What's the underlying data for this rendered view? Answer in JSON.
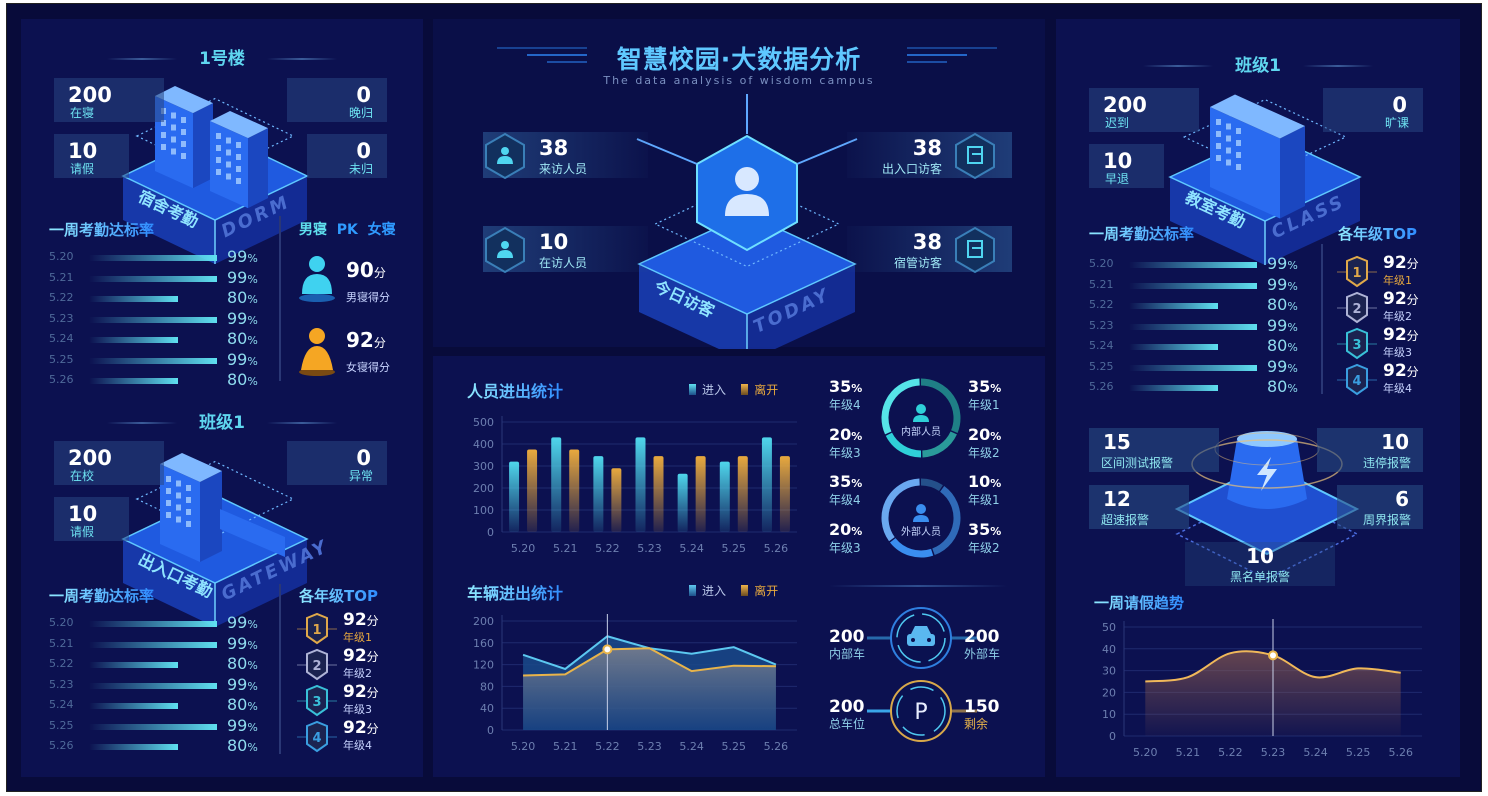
{
  "header": {
    "title": "智慧校园·大数据分析",
    "subtitle": "The data analysis of wisdom campus"
  },
  "dorm": {
    "title": "1号楼",
    "stats": [
      {
        "value": "200",
        "label": "在寝"
      },
      {
        "value": "0",
        "label": "晚归"
      },
      {
        "value": "10",
        "label": "请假"
      },
      {
        "value": "0",
        "label": "未归"
      }
    ],
    "badge_cn": "宿舍考勤",
    "badge_en": "DORM",
    "rate_title": "一周考勤达标率",
    "rates": [
      {
        "date": "5.20",
        "value": 99
      },
      {
        "date": "5.21",
        "value": 99
      },
      {
        "date": "5.22",
        "value": 80
      },
      {
        "date": "5.23",
        "value": 99
      },
      {
        "date": "5.24",
        "value": 80
      },
      {
        "date": "5.25",
        "value": 99
      },
      {
        "date": "5.26",
        "value": 80
      }
    ],
    "pk": {
      "left": "男寝",
      "mid": "PK",
      "right": "女寝",
      "male": {
        "score": "90",
        "unit": "分",
        "label": "男寝得分",
        "color": "#3fd2f0"
      },
      "female": {
        "score": "92",
        "unit": "分",
        "label": "女寝得分",
        "color": "#f5a623"
      }
    }
  },
  "gateway": {
    "title": "班级1",
    "stats": [
      {
        "value": "200",
        "label": "在校"
      },
      {
        "value": "0",
        "label": "异常"
      },
      {
        "value": "10",
        "label": "请假"
      }
    ],
    "badge_cn": "出入口考勤",
    "badge_en": "GATEWAY",
    "rate_title": "一周考勤达标率",
    "rates": [
      {
        "date": "5.20",
        "value": 99
      },
      {
        "date": "5.21",
        "value": 99
      },
      {
        "date": "5.22",
        "value": 80
      },
      {
        "date": "5.23",
        "value": 99
      },
      {
        "date": "5.24",
        "value": 80
      },
      {
        "date": "5.25",
        "value": 99
      },
      {
        "date": "5.26",
        "value": 80
      }
    ],
    "top_title": "各年级TOP",
    "top": [
      {
        "rank": "1",
        "score": "92",
        "unit": "分",
        "grade": "年级1",
        "color": "#e0a94a"
      },
      {
        "rank": "2",
        "score": "92",
        "unit": "分",
        "grade": "年级2",
        "color": "#aeb3d6"
      },
      {
        "rank": "3",
        "score": "92",
        "unit": "分",
        "grade": "年级3",
        "color": "#39c0d8"
      },
      {
        "rank": "4",
        "score": "92",
        "unit": "分",
        "grade": "年级4",
        "color": "#3a9ee0"
      }
    ]
  },
  "visitors": {
    "badge_cn": "今日访客",
    "badge_en": "TODAY",
    "items": [
      {
        "value": "38",
        "label": "来访人员",
        "icon": "visitor-icon"
      },
      {
        "value": "10",
        "label": "在访人员",
        "icon": "present-visitor-icon"
      },
      {
        "value": "38",
        "label": "出入口访客",
        "icon": "gate-icon"
      },
      {
        "value": "38",
        "label": "宿管访客",
        "icon": "dorm-manager-icon"
      }
    ]
  },
  "people": {
    "internal": {
      "label": "内部人员",
      "color": "#2fd0d8",
      "slices": [
        {
          "pct": "35",
          "grade": "年级1"
        },
        {
          "pct": "20",
          "grade": "年级2"
        },
        {
          "pct": "20",
          "grade": "年级3"
        },
        {
          "pct": "35",
          "grade": "年级4"
        }
      ]
    },
    "external": {
      "label": "外部人员",
      "color": "#3a8ef0",
      "slices": [
        {
          "pct": "10",
          "grade": "年级1"
        },
        {
          "pct": "35",
          "grade": "年级2"
        },
        {
          "pct": "20",
          "grade": "年级3"
        },
        {
          "pct": "35",
          "grade": "年级4"
        }
      ]
    },
    "pct_sign": "%"
  },
  "vehicles": {
    "internal": {
      "value": "200",
      "label": "内部车"
    },
    "external": {
      "value": "200",
      "label": "外部车"
    },
    "total": {
      "value": "200",
      "label": "总车位"
    },
    "free": {
      "value": "150",
      "label": "剩余"
    },
    "parking_symbol": "P"
  },
  "classroom": {
    "title": "班级1",
    "stats": [
      {
        "value": "200",
        "label": "迟到"
      },
      {
        "value": "0",
        "label": "旷课"
      },
      {
        "value": "10",
        "label": "早退"
      }
    ],
    "badge_cn": "教室考勤",
    "badge_en": "CLASS",
    "rate_title": "一周考勤达标率",
    "rates": [
      {
        "date": "5.20",
        "value": 99
      },
      {
        "date": "5.21",
        "value": 99
      },
      {
        "date": "5.22",
        "value": 80
      },
      {
        "date": "5.23",
        "value": 99
      },
      {
        "date": "5.24",
        "value": 80
      },
      {
        "date": "5.25",
        "value": 99
      },
      {
        "date": "5.26",
        "value": 80
      }
    ],
    "top_title": "各年级TOP",
    "top": [
      {
        "rank": "1",
        "score": "92",
        "unit": "分",
        "grade": "年级1",
        "color": "#e0a94a"
      },
      {
        "rank": "2",
        "score": "92",
        "unit": "分",
        "grade": "年级2",
        "color": "#aeb3d6"
      },
      {
        "rank": "3",
        "score": "92",
        "unit": "分",
        "grade": "年级3",
        "color": "#39c0d8"
      },
      {
        "rank": "4",
        "score": "92",
        "unit": "分",
        "grade": "年级4",
        "color": "#3a9ee0"
      }
    ]
  },
  "alarms": [
    {
      "value": "15",
      "label": "区间测试报警"
    },
    {
      "value": "10",
      "label": "违停报警"
    },
    {
      "value": "12",
      "label": "超速报警"
    },
    {
      "value": "6",
      "label": "周界报警"
    },
    {
      "value": "10",
      "label": "黑名单报警"
    }
  ],
  "chart_data": [
    {
      "type": "bar",
      "title": "人员进出统计",
      "categories": [
        "5.20",
        "5.21",
        "5.22",
        "5.23",
        "5.24",
        "5.25",
        "5.26"
      ],
      "series": [
        {
          "name": "进入",
          "values": [
            320,
            430,
            345,
            430,
            265,
            320,
            430
          ],
          "color": "#4fd6ec"
        },
        {
          "name": "离开",
          "values": [
            375,
            375,
            290,
            345,
            345,
            345,
            345
          ],
          "color": "#e8a93e"
        }
      ],
      "ylim": [
        0,
        500
      ],
      "yticks": [
        0,
        100,
        200,
        300,
        400,
        500
      ],
      "grid": true,
      "legend": "top-right"
    },
    {
      "type": "area",
      "title": "车辆进出统计",
      "categories": [
        "5.20",
        "5.21",
        "5.22",
        "5.23",
        "5.24",
        "5.25",
        "5.26"
      ],
      "series": [
        {
          "name": "进入",
          "values": [
            138,
            112,
            172,
            150,
            140,
            152,
            120
          ],
          "color": "#5cc8f0"
        },
        {
          "name": "离开",
          "values": [
            100,
            102,
            148,
            150,
            108,
            118,
            117
          ],
          "color": "#e8b44a"
        }
      ],
      "ylim": [
        0,
        200
      ],
      "yticks": [
        0,
        40,
        80,
        120,
        160,
        200
      ],
      "grid": true,
      "legend": "top-right",
      "highlight": "5.22"
    },
    {
      "type": "area",
      "title": "一周请假趋势",
      "categories": [
        "5.20",
        "5.21",
        "5.22",
        "5.23",
        "5.24",
        "5.25",
        "5.26"
      ],
      "series": [
        {
          "values": [
            25,
            27,
            38,
            37,
            27,
            31,
            29
          ],
          "color": "#f0b85a"
        }
      ],
      "ylim": [
        0,
        50
      ],
      "yticks": [
        0,
        10,
        20,
        30,
        40,
        50
      ],
      "grid": true,
      "smooth": true,
      "highlight": "5.23"
    }
  ]
}
